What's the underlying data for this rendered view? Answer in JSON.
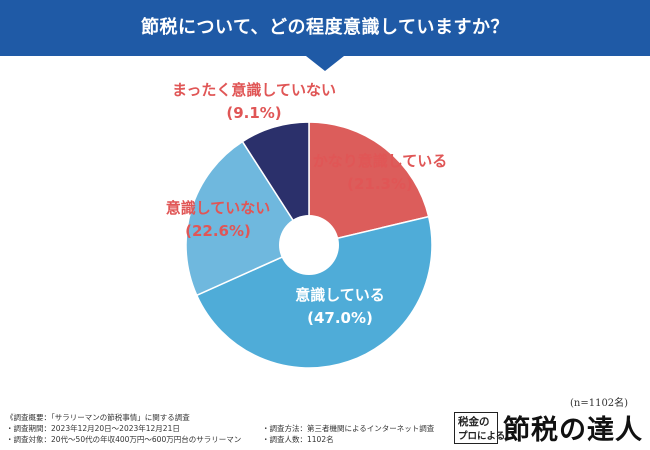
{
  "header": {
    "title": "節税について、どの程度意識していますか？"
  },
  "chart_data": {
    "type": "pie",
    "title": "節税について、どの程度意識していますか？",
    "slices": [
      {
        "label": "かなり意識している",
        "value": 21.3,
        "display": "(21.3%)",
        "color": "#dc5d5b",
        "label_color": "#e05656"
      },
      {
        "label": "意識している",
        "value": 47.0,
        "display": "(47.0%)",
        "color": "#4facd8",
        "label_color": "#ffffff"
      },
      {
        "label": "意識していない",
        "value": 22.6,
        "display": "(22.6%)",
        "color": "#6fb8de",
        "label_color": "#e05656"
      },
      {
        "label": "まったく意識していない",
        "value": 9.1,
        "display": "(9.1%)",
        "color": "#2b306b",
        "label_color": "#e05656"
      }
    ],
    "start_angle_deg": 0,
    "direction": "clockwise",
    "donut": true
  },
  "sample_size": "(n=1102名)",
  "notes": {
    "overview": "《調査概要：「サラリーマンの節税事情」に関する調査",
    "period": "・調査期間：2023年12月20日〜2023年12月21日",
    "target": "・調査対象：20代〜50代の年収400万円〜600万円台のサラリーマン",
    "method": "・調査方法：第三者機関によるインターネット調査",
    "count": "・調査人数：1102名"
  },
  "logo": {
    "small_top": "税金の",
    "small_bottom": "プロによる",
    "main": "節税の達人"
  }
}
